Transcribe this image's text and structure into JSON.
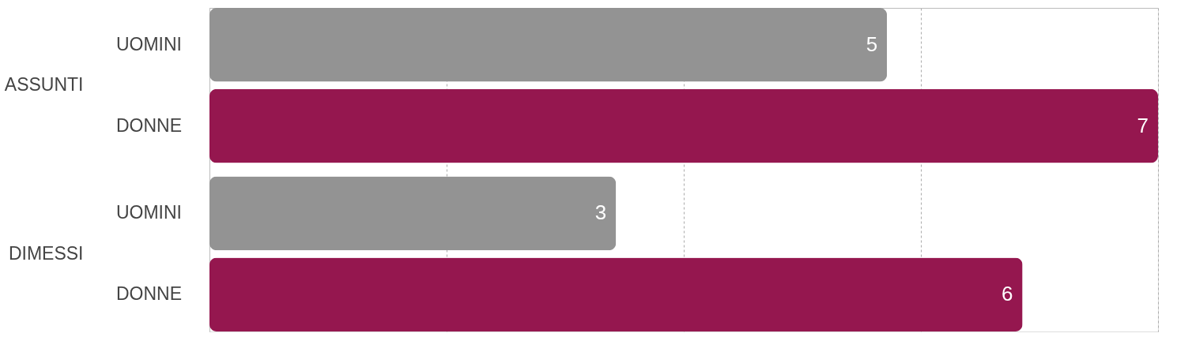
{
  "chart_data": {
    "type": "bar",
    "orientation": "horizontal",
    "categories": [
      "ASSUNTI",
      "DIMESSI"
    ],
    "series": [
      {
        "name": "UOMINI",
        "color": "#939393",
        "values": [
          5,
          3
        ]
      },
      {
        "name": "DONNE",
        "color": "#95174f",
        "values": [
          7,
          6
        ]
      }
    ],
    "xlim": [
      0,
      7
    ],
    "xticks": [
      {
        "value": 0,
        "label": null
      },
      {
        "value": 1.75,
        "label": null
      },
      {
        "value": 3.5,
        "label": null
      },
      {
        "value": 5.25,
        "label": null
      },
      {
        "value": 7,
        "label": null
      }
    ],
    "grid": "x",
    "line_style": "dashed",
    "data_labels": true,
    "tick_labels": "y",
    "legend": false
  }
}
